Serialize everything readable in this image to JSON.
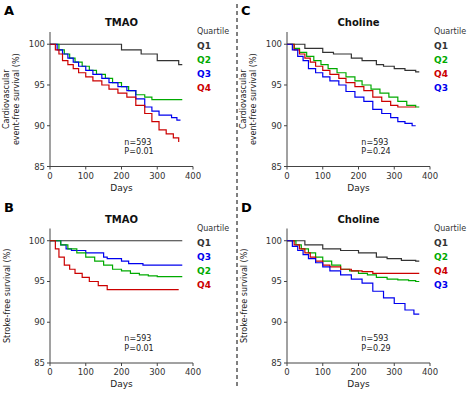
{
  "chart_data": [
    {
      "type": "step",
      "title": "TMAO",
      "panel_label": "A",
      "x_label": "Days",
      "y_label": "Cardiovascular\nevent-free survival (%)",
      "annotation": "n=593\nP=0.01",
      "legend_title": "Quartile",
      "legend": "right",
      "grid": false,
      "xlim": [
        0,
        400
      ],
      "ylim": [
        85,
        101.5
      ],
      "xticks": [
        0,
        100,
        200,
        300,
        400
      ],
      "yticks": [
        85,
        90,
        95,
        100
      ],
      "series": [
        {
          "name": "Q1",
          "color": "#333333",
          "x": [
            0,
            60,
            100,
            200,
            250,
            255,
            300,
            360,
            370
          ],
          "values": [
            100,
            100,
            100,
            99.3,
            99.3,
            98.8,
            98,
            97.5,
            97.5
          ]
        },
        {
          "name": "Q2",
          "color": "#00aa00",
          "x": [
            0,
            25,
            40,
            55,
            70,
            90,
            110,
            130,
            155,
            175,
            200,
            220,
            240,
            265,
            285,
            310,
            340,
            360,
            370
          ],
          "values": [
            100,
            99.3,
            98.8,
            98.3,
            97.8,
            97.3,
            96.8,
            96.3,
            95.8,
            95.3,
            94.8,
            94.3,
            93.8,
            93.5,
            93.2,
            93.2,
            93.2,
            93.2,
            93.2
          ]
        },
        {
          "name": "Q3",
          "color": "#0000ee",
          "x": [
            0,
            20,
            35,
            50,
            65,
            80,
            100,
            120,
            145,
            165,
            190,
            215,
            240,
            265,
            285,
            305,
            320,
            340,
            355,
            365
          ],
          "values": [
            100,
            99.3,
            98.8,
            98.3,
            97.8,
            97.3,
            96.8,
            96.3,
            95.8,
            95.3,
            94.8,
            94.3,
            93.3,
            92.3,
            91.8,
            91.3,
            91.3,
            91.0,
            90.7,
            90.7
          ]
        },
        {
          "name": "Q4",
          "color": "#cc0000",
          "x": [
            0,
            15,
            25,
            35,
            50,
            65,
            80,
            100,
            120,
            145,
            165,
            190,
            215,
            240,
            265,
            285,
            305,
            325,
            345,
            360
          ],
          "values": [
            100,
            99.3,
            98.8,
            98.0,
            97.5,
            97.0,
            96.5,
            96.0,
            95.5,
            95.0,
            94.5,
            94.0,
            93.5,
            92.5,
            91.5,
            90.5,
            89.5,
            89.0,
            88.5,
            88.0
          ]
        }
      ]
    },
    {
      "type": "step",
      "title": "Choline",
      "panel_label": "C",
      "x_label": "Days",
      "y_label": "Cardiovascular\nevent-free survival (%)",
      "annotation": "n=593\nP=0.24",
      "legend_title": "Quartile",
      "legend": "right",
      "grid": false,
      "xlim": [
        0,
        400
      ],
      "ylim": [
        85,
        101.5
      ],
      "xticks": [
        0,
        100,
        200,
        300,
        400
      ],
      "yticks": [
        85,
        90,
        95,
        100
      ],
      "series": [
        {
          "name": "Q1",
          "color": "#333333",
          "x": [
            0,
            40,
            50,
            100,
            130,
            180,
            210,
            250,
            270,
            300,
            330,
            360,
            370
          ],
          "values": [
            100,
            100,
            99.5,
            99.0,
            98.8,
            98.3,
            98.0,
            97.5,
            97.3,
            97.0,
            96.8,
            96.6,
            96.6
          ]
        },
        {
          "name": "Q2",
          "color": "#00aa00",
          "x": [
            0,
            20,
            35,
            55,
            75,
            95,
            115,
            140,
            165,
            190,
            210,
            235,
            260,
            285,
            310,
            335,
            360,
            370
          ],
          "values": [
            100,
            99.5,
            99.0,
            98.5,
            98.0,
            97.5,
            97.0,
            96.5,
            96.0,
            95.5,
            95.0,
            94.5,
            94.0,
            93.5,
            93.0,
            92.5,
            92.3,
            92.3
          ]
        },
        {
          "name": "Q4",
          "color": "#cc0000",
          "x": [
            0,
            20,
            35,
            50,
            65,
            80,
            100,
            120,
            145,
            165,
            190,
            215,
            240,
            265,
            290,
            310,
            330,
            350,
            360
          ],
          "values": [
            100,
            99.3,
            98.8,
            98.3,
            97.8,
            97.3,
            96.8,
            96.3,
            95.8,
            95.3,
            94.8,
            94.3,
            93.5,
            93.0,
            92.5,
            92.3,
            92.3,
            92.3,
            92.3
          ]
        },
        {
          "name": "Q3",
          "color": "#0000ee",
          "x": [
            0,
            15,
            30,
            45,
            60,
            80,
            100,
            120,
            145,
            165,
            190,
            215,
            240,
            265,
            290,
            310,
            330,
            350,
            360
          ],
          "values": [
            100,
            99.3,
            98.5,
            98.0,
            97.0,
            96.5,
            96.0,
            95.5,
            95.0,
            94.2,
            93.5,
            93.0,
            92.0,
            91.5,
            91.0,
            90.5,
            90.3,
            90.0,
            90.0
          ]
        }
      ]
    },
    {
      "type": "step",
      "title": "TMAO",
      "panel_label": "B",
      "x_label": "Days",
      "y_label": "Stroke-free survival (%)",
      "annotation": "n=593\nP=0.01",
      "legend_title": "Quartile",
      "legend": "right",
      "grid": false,
      "xlim": [
        0,
        400
      ],
      "ylim": [
        85,
        101.5
      ],
      "xticks": [
        0,
        100,
        200,
        300,
        400
      ],
      "yticks": [
        85,
        90,
        95,
        100
      ],
      "series": [
        {
          "name": "Q1",
          "color": "#333333",
          "x": [
            0,
            370
          ],
          "values": [
            100,
            100
          ]
        },
        {
          "name": "Q3",
          "color": "#0000ee",
          "x": [
            0,
            30,
            45,
            60,
            100,
            150,
            160,
            165,
            200,
            220,
            260,
            270,
            300,
            340,
            360,
            370
          ],
          "values": [
            100,
            99.5,
            99.0,
            98.8,
            98.5,
            98.0,
            97.8,
            97.8,
            97.5,
            97.2,
            97.0,
            97.0,
            97.0,
            97.0,
            97.0,
            97.0
          ]
        },
        {
          "name": "Q2",
          "color": "#00aa00",
          "x": [
            0,
            30,
            50,
            75,
            100,
            125,
            150,
            175,
            200,
            225,
            250,
            275,
            300,
            320,
            350,
            370
          ],
          "values": [
            100,
            99.5,
            99.0,
            98.5,
            98.0,
            97.5,
            97.0,
            96.5,
            96.3,
            96.0,
            95.8,
            95.7,
            95.6,
            95.6,
            95.6,
            95.6
          ]
        },
        {
          "name": "Q4",
          "color": "#cc0000",
          "x": [
            0,
            15,
            25,
            40,
            55,
            70,
            90,
            110,
            135,
            160,
            185,
            210,
            240,
            270,
            300,
            330,
            350,
            360
          ],
          "values": [
            100,
            99.0,
            98.0,
            97.0,
            96.5,
            96.0,
            95.5,
            95.0,
            94.5,
            94.0,
            94.0,
            94.0,
            94.0,
            94.0,
            94.0,
            94.0,
            94.0,
            94.0
          ]
        }
      ]
    },
    {
      "type": "step",
      "title": "Choline",
      "panel_label": "D",
      "x_label": "Days",
      "y_label": "Stroke-free survival (%)",
      "annotation": "n=593\nP=0.29",
      "legend_title": "Quartile",
      "legend": "right",
      "grid": false,
      "xlim": [
        0,
        400
      ],
      "ylim": [
        85,
        101.5
      ],
      "xticks": [
        0,
        100,
        200,
        300,
        400
      ],
      "yticks": [
        85,
        90,
        95,
        100
      ],
      "series": [
        {
          "name": "Q1",
          "color": "#333333",
          "x": [
            0,
            40,
            50,
            100,
            150,
            200,
            250,
            280,
            320,
            360,
            370
          ],
          "values": [
            100,
            100,
            99.5,
            99.0,
            98.8,
            98.5,
            98.0,
            97.8,
            97.6,
            97.5,
            97.5
          ]
        },
        {
          "name": "Q2",
          "color": "#00aa00",
          "x": [
            0,
            25,
            40,
            60,
            80,
            100,
            125,
            150,
            175,
            200,
            225,
            250,
            280,
            310,
            340,
            360,
            370
          ],
          "values": [
            100,
            99.5,
            99.0,
            98.5,
            98.0,
            97.5,
            97.0,
            96.5,
            96.3,
            96.0,
            95.8,
            95.5,
            95.3,
            95.2,
            95.1,
            95.0,
            95.0
          ]
        },
        {
          "name": "Q4",
          "color": "#cc0000",
          "x": [
            0,
            20,
            35,
            50,
            65,
            80,
            100,
            120,
            150,
            180,
            210,
            240,
            270,
            300,
            330,
            360,
            370
          ],
          "values": [
            100,
            99.5,
            99.0,
            98.5,
            98.0,
            97.5,
            97.0,
            96.8,
            96.5,
            96.3,
            96.2,
            96.0,
            96.0,
            96.0,
            96.0,
            96.0,
            96.0
          ]
        },
        {
          "name": "Q3",
          "color": "#0000ee",
          "x": [
            0,
            15,
            30,
            45,
            60,
            80,
            100,
            120,
            150,
            180,
            210,
            240,
            270,
            300,
            330,
            355,
            370
          ],
          "values": [
            100,
            99.3,
            98.8,
            98.3,
            97.8,
            97.3,
            96.8,
            96.3,
            95.8,
            95.3,
            94.8,
            93.8,
            93.0,
            92.3,
            91.5,
            91.0,
            91.0
          ]
        }
      ]
    }
  ]
}
